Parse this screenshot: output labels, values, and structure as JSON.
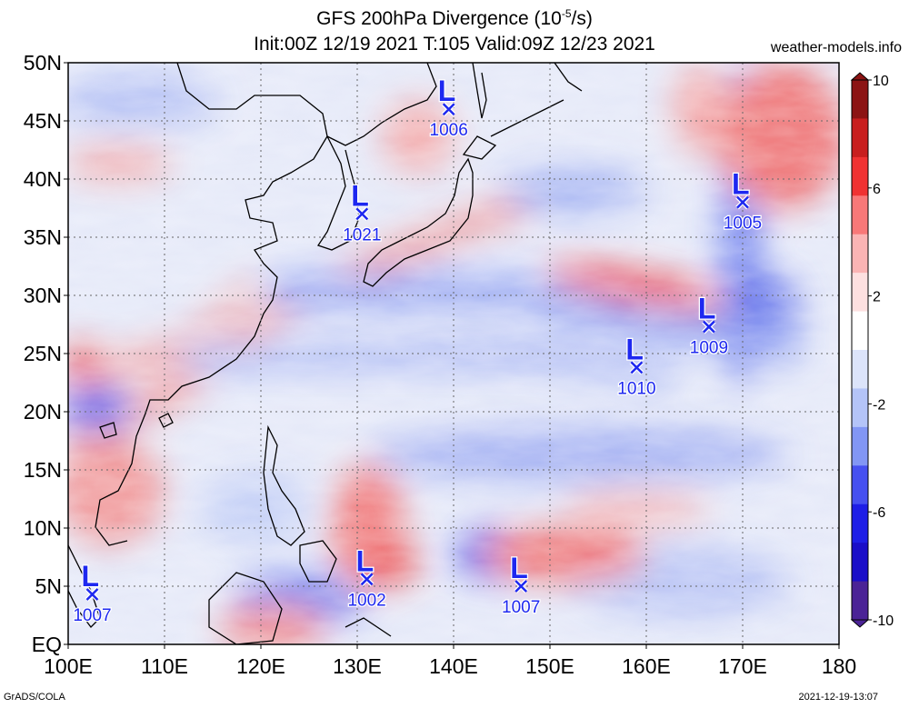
{
  "title_line1": "GFS 200hPa Divergence (10",
  "title_exp": "-5",
  "title_unit": "/s)",
  "title_line2": "Init:00Z 12/19 2021 T:105 Valid:09Z 12/23 2021",
  "site": "weather-models.info",
  "footer_left": "GrADS/COLA",
  "footer_right": "2021-12-19-13:07",
  "lat_labels": [
    "50N",
    "45N",
    "40N",
    "35N",
    "30N",
    "25N",
    "20N",
    "15N",
    "10N",
    "5N",
    "EQ"
  ],
  "lon_labels": [
    "100E",
    "110E",
    "120E",
    "130E",
    "140E",
    "150E",
    "160E",
    "170E",
    "180"
  ],
  "colorbar": {
    "labels": [
      "10",
      "6",
      "2",
      "-2",
      "-6",
      "-10"
    ],
    "colors": [
      "#8c1414",
      "#c81e1e",
      "#f03232",
      "#f87878",
      "#fab4b4",
      "#fde0e0",
      "#ffffff",
      "#dce4fa",
      "#b4c4f8",
      "#8296f4",
      "#4650f0",
      "#1e1ee6",
      "#1a0ec8",
      "#4b2396"
    ]
  },
  "lows": [
    {
      "letter": "L",
      "pressure": "1006",
      "lon": 139.5,
      "lat": 46
    },
    {
      "letter": "L",
      "pressure": "1021",
      "lon": 130.5,
      "lat": 37
    },
    {
      "letter": "L",
      "pressure": "1005",
      "lon": 170,
      "lat": 38
    },
    {
      "letter": "L",
      "pressure": "1009",
      "lon": 166.5,
      "lat": 27.3
    },
    {
      "letter": "L",
      "pressure": "1010",
      "lon": 159,
      "lat": 23.8
    },
    {
      "letter": "L",
      "pressure": "1007",
      "lon": 102.5,
      "lat": 4.3
    },
    {
      "letter": "L",
      "pressure": "1002",
      "lon": 131,
      "lat": 5.6
    },
    {
      "letter": "L",
      "pressure": "1007",
      "lon": 147,
      "lat": 5
    }
  ],
  "colors": {
    "low_marker": "#1e28f0"
  }
}
